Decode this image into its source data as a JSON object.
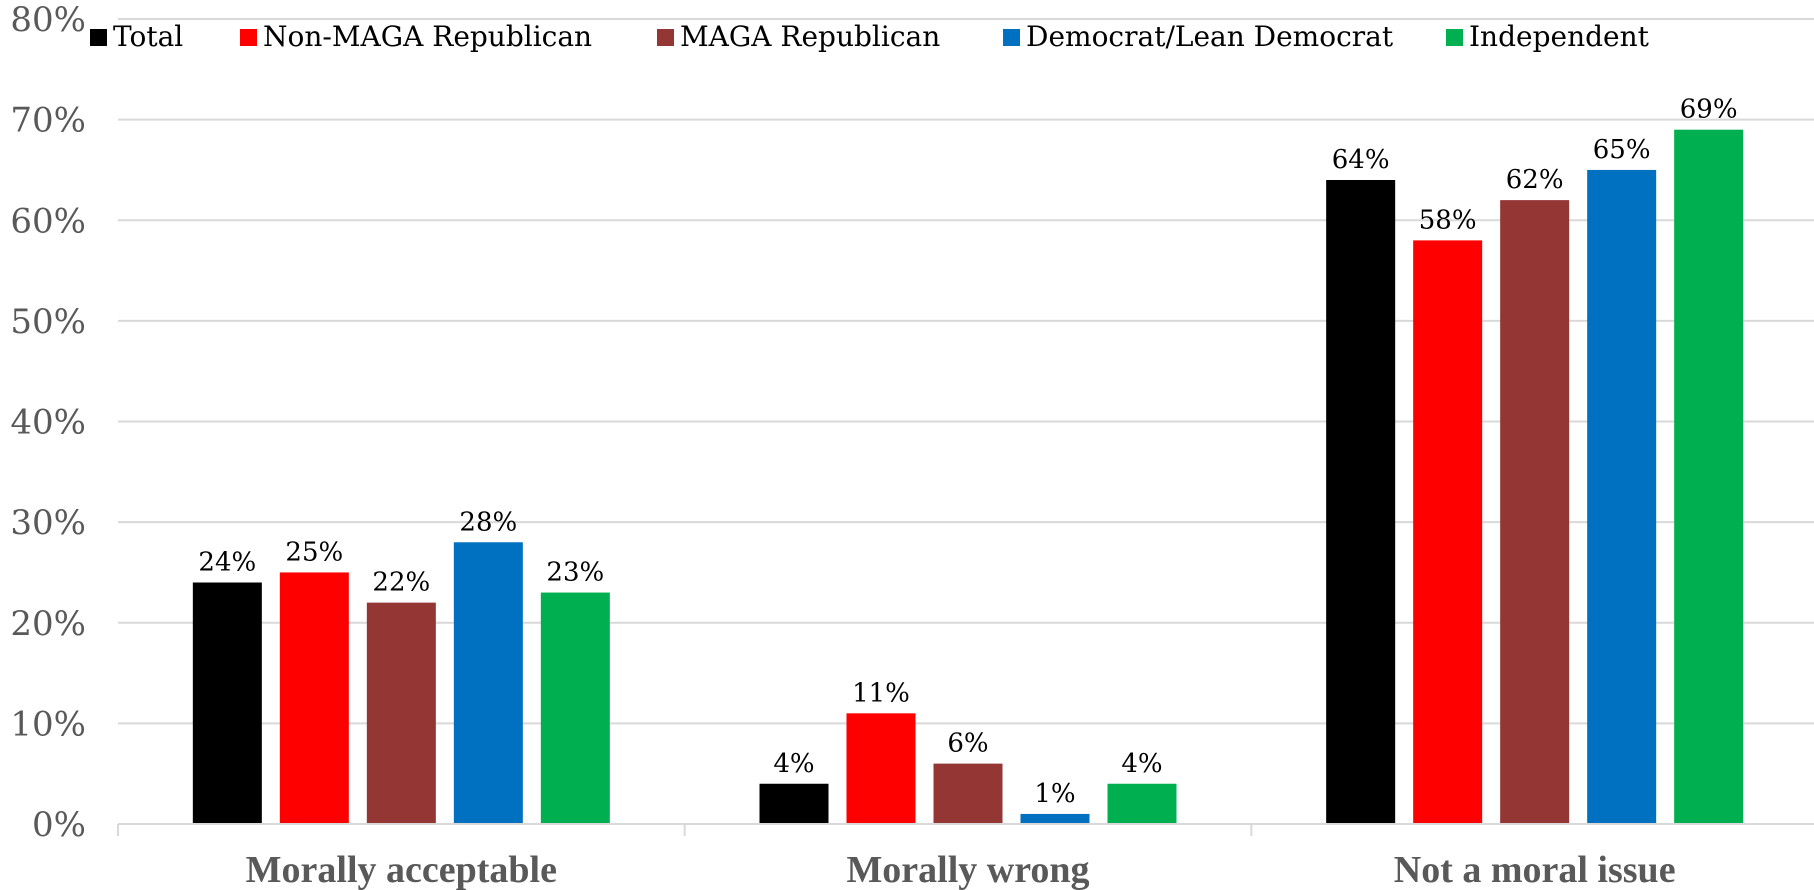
{
  "chart_data": {
    "type": "bar",
    "title": "",
    "xlabel": "",
    "ylabel": "",
    "categories": [
      "Morally acceptable",
      "Morally wrong",
      "Not a moral issue"
    ],
    "series": [
      {
        "name": "Total",
        "color": "#000000",
        "values": [
          24,
          4,
          64
        ],
        "labels": [
          "24%",
          "4%",
          "64%"
        ]
      },
      {
        "name": "Non-MAGA Republican",
        "color": "#ff0000",
        "values": [
          25,
          11,
          58
        ],
        "labels": [
          "25%",
          "11%",
          "58%"
        ]
      },
      {
        "name": "MAGA Republican",
        "color": "#943634",
        "values": [
          22,
          6,
          62
        ],
        "labels": [
          "22%",
          "6%",
          "62%"
        ]
      },
      {
        "name": "Democrat/Lean Democrat",
        "color": "#0070c0",
        "values": [
          28,
          1,
          65
        ],
        "labels": [
          "28%",
          "1%",
          "65%"
        ]
      },
      {
        "name": "Independent",
        "color": "#00b050",
        "values": [
          23,
          4,
          69
        ],
        "labels": [
          "23%",
          "4%",
          "69%"
        ]
      }
    ],
    "ylim": [
      0,
      80
    ],
    "yticks": [
      0,
      10,
      20,
      30,
      40,
      50,
      60,
      70,
      80
    ],
    "ytick_labels": [
      "0%",
      "10%",
      "20%",
      "30%",
      "40%",
      "50%",
      "60%",
      "70%",
      "80%"
    ],
    "grid": true,
    "legend_position": "top"
  }
}
